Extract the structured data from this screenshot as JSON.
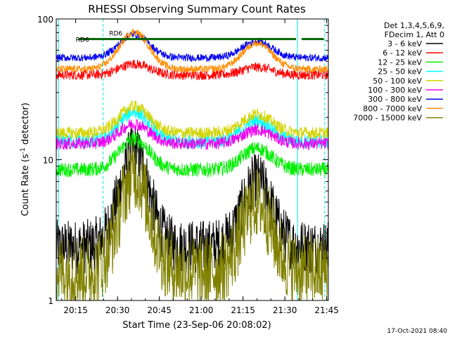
{
  "chart_data": {
    "type": "line",
    "title": "RHESSI Observing Summary Count Rates",
    "xlabel": "Start Time (23-Sep-06 20:08:02)",
    "ylabel_main": "Count Rate (s",
    "ylabel_sup": "-1",
    "ylabel_mid": " detector",
    "ylabel_end": ")",
    "y_scale": "log",
    "ylim": [
      1,
      100
    ],
    "xlim_minutes": [
      8.03,
      105.6
    ],
    "x_ticks": [
      {
        "m": 15,
        "label": "20:15"
      },
      {
        "m": 30,
        "label": "20:30"
      },
      {
        "m": 45,
        "label": "20:45"
      },
      {
        "m": 60,
        "label": "21:00"
      },
      {
        "m": 75,
        "label": "21:15"
      },
      {
        "m": 90,
        "label": "21:30"
      },
      {
        "m": 105,
        "label": "21:45"
      }
    ],
    "y_ticks": [
      {
        "v": 1,
        "label": "1"
      },
      {
        "v": 10,
        "label": "10"
      },
      {
        "v": 100,
        "label": "100"
      }
    ],
    "legend_header": [
      "Det 1,3,4,5,6,9,",
      "FDecim 1, Att 0"
    ],
    "series": [
      {
        "name": "3 - 6 keV",
        "color": "#000000",
        "base": 2.4,
        "peak": 11.5,
        "noise": 0.45
      },
      {
        "name": "6 - 12 keV",
        "color": "#ff0000",
        "base": 40,
        "peak": 48,
        "noise": 0.08
      },
      {
        "name": "12 - 25 keV",
        "color": "#00ee00",
        "base": 8.5,
        "peak": 14,
        "noise": 0.12
      },
      {
        "name": "25 - 50 keV",
        "color": "#00ffff",
        "base": 13.5,
        "peak": 22,
        "noise": 0.12
      },
      {
        "name": "50 - 100 keV",
        "color": "#d4d400",
        "base": 15.5,
        "peak": 24,
        "noise": 0.1
      },
      {
        "name": "100 - 300 keV",
        "color": "#ee00ee",
        "base": 13,
        "peak": 18,
        "noise": 0.1
      },
      {
        "name": "300 - 800 keV",
        "color": "#0000ee",
        "base": 53,
        "peak": 78,
        "noise": 0.06
      },
      {
        "name": "800 - 7000 keV",
        "color": "#ff8c00",
        "base": 44,
        "peak": 81,
        "noise": 0.06
      },
      {
        "name": "7000 - 15000 keV",
        "color": "#808000",
        "base": 1.6,
        "peak": 8,
        "noise": 0.6
      }
    ],
    "attenuator_marks": [
      {
        "label": "RD6",
        "m": 15,
        "value": 72
      },
      {
        "label": "RD6",
        "m": 27,
        "value": 80
      }
    ],
    "vertical_markers_minutes": [
      8.8,
      24.8,
      94.5,
      104.3
    ],
    "timestamp": "17-Oct-2021 08:40"
  }
}
